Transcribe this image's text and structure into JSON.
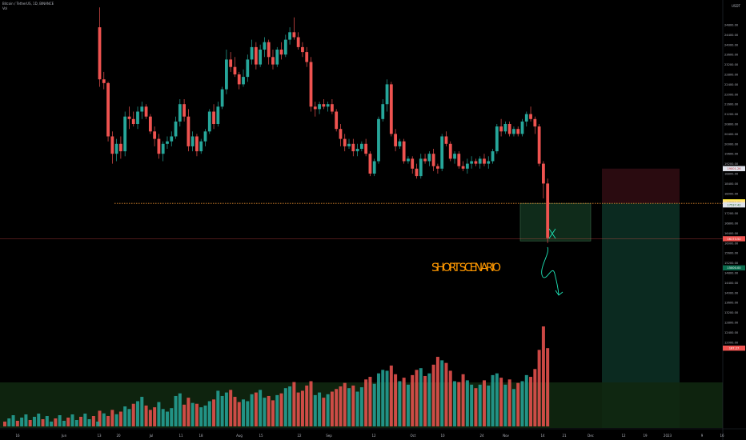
{
  "header": {
    "symbol_line": "Bitcoin / TetherUS, 1D, BINANCE",
    "vol_label": "Vol"
  },
  "axis": {
    "currency": "USDT",
    "price_labels": [
      "24800.00",
      "24400.00",
      "24000.00",
      "23600.00",
      "23200.00",
      "22800.00",
      "22400.00",
      "22000.00",
      "21600.00",
      "21200.00",
      "20800.00",
      "20400.00",
      "20000.00",
      "19600.00",
      "19200.00",
      "18800.00",
      "18400.00",
      "18000.00",
      "17600.00",
      "17200.00",
      "16800.00",
      "16400.00",
      "16000.00",
      "15600.00",
      "15200.00",
      "14800.00",
      "14400.00",
      "14000.00",
      "13600.00",
      "13200.00",
      "12800.00",
      "12400.00",
      "12000.00"
    ],
    "date_labels": [
      "16",
      "Jun",
      "13",
      "20",
      "Jul",
      "11",
      "18",
      "Aug",
      "15",
      "22",
      "Sep",
      "12",
      "Oct",
      "10",
      "24",
      "Nov",
      "14",
      "21",
      "Dec",
      "12",
      "19",
      "2023",
      "9",
      "16"
    ],
    "tags": {
      "stop": "19001.26",
      "zone_top": "17662.00",
      "zone_mid": "17622.00",
      "zone_bottom": "17537.42",
      "last": "16173.52",
      "target": "15000.00",
      "vol": "167.27"
    }
  },
  "annotation": {
    "text": "SHORT SCENARIO"
  },
  "colors": {
    "up": "#26a69a",
    "down": "#ef5350",
    "level_line": "#e08a2e",
    "annotation": "#ff9800",
    "scenario_arrow": "#1ee3b6",
    "stop_zone": "#2a0b10",
    "target_zone": "#0b2a20",
    "vol_zone": "#102710"
  },
  "chart_data": {
    "type": "candlestick",
    "symbol": "Bitcoin / TetherUS",
    "interval": "1D",
    "exchange": "BINANCE",
    "key_level": 17600,
    "last_price": 16173.52,
    "position": {
      "entry": 17600,
      "stop": 19001.26,
      "target": 15000.0
    },
    "ohlc": [
      [
        24700,
        25500,
        22300,
        22600
      ],
      [
        22600,
        22900,
        22200,
        22450
      ],
      [
        22450,
        22500,
        20100,
        20300
      ],
      [
        20300,
        20500,
        19200,
        19600
      ],
      [
        19600,
        20200,
        19300,
        20000
      ],
      [
        20000,
        20300,
        19400,
        19700
      ],
      [
        19700,
        21300,
        19500,
        21100
      ],
      [
        21100,
        21500,
        20600,
        21000
      ],
      [
        21000,
        21300,
        20700,
        20800
      ],
      [
        20800,
        21500,
        20600,
        21300
      ],
      [
        21300,
        21700,
        21000,
        21500
      ],
      [
        21500,
        21600,
        21000,
        21100
      ],
      [
        21100,
        21200,
        20400,
        20500
      ],
      [
        20500,
        20700,
        19900,
        20200
      ],
      [
        20200,
        20400,
        19400,
        19600
      ],
      [
        19600,
        20100,
        19300,
        20000
      ],
      [
        20000,
        20300,
        19800,
        20100
      ],
      [
        20100,
        20500,
        19900,
        20300
      ],
      [
        20300,
        21100,
        20200,
        20900
      ],
      [
        20900,
        21800,
        20700,
        21600
      ],
      [
        21600,
        21800,
        20900,
        21100
      ],
      [
        21100,
        21400,
        19700,
        19900
      ],
      [
        19900,
        20500,
        19700,
        20300
      ],
      [
        20300,
        20400,
        19500,
        19700
      ],
      [
        19700,
        20200,
        19600,
        20100
      ],
      [
        20100,
        20600,
        19900,
        20500
      ],
      [
        20500,
        21400,
        20400,
        21300
      ],
      [
        21300,
        21600,
        20600,
        20800
      ],
      [
        20800,
        21700,
        20700,
        21500
      ],
      [
        21500,
        22300,
        21400,
        22200
      ],
      [
        22200,
        23800,
        22000,
        23400
      ],
      [
        23400,
        23700,
        22900,
        23100
      ],
      [
        23100,
        23500,
        22700,
        22800
      ],
      [
        22800,
        22900,
        22200,
        22400
      ],
      [
        22400,
        23000,
        22300,
        22700
      ],
      [
        22700,
        23600,
        22500,
        23400
      ],
      [
        23400,
        24200,
        23200,
        23900
      ],
      [
        23900,
        24100,
        23000,
        23200
      ],
      [
        23200,
        24000,
        23100,
        23800
      ],
      [
        23800,
        24300,
        23500,
        24100
      ],
      [
        24100,
        24200,
        23200,
        23500
      ],
      [
        23500,
        23800,
        23000,
        23200
      ],
      [
        23200,
        23900,
        23100,
        23800
      ],
      [
        23800,
        24100,
        23400,
        23600
      ],
      [
        23600,
        24400,
        23500,
        24200
      ],
      [
        24200,
        24700,
        24000,
        24500
      ],
      [
        24500,
        25100,
        24200,
        24300
      ],
      [
        24300,
        24500,
        23800,
        23900
      ],
      [
        23900,
        24100,
        23500,
        23700
      ],
      [
        23700,
        23900,
        23100,
        23300
      ],
      [
        23300,
        23500,
        21300,
        21500
      ],
      [
        21500,
        21700,
        21100,
        21400
      ],
      [
        21400,
        21700,
        21200,
        21600
      ],
      [
        21600,
        21800,
        21400,
        21500
      ],
      [
        21500,
        21700,
        21300,
        21600
      ],
      [
        21600,
        21800,
        21200,
        21300
      ],
      [
        21300,
        21400,
        20500,
        20600
      ],
      [
        20600,
        20800,
        19900,
        20200
      ],
      [
        20200,
        20400,
        19700,
        19900
      ],
      [
        19900,
        20200,
        19800,
        20000
      ],
      [
        20000,
        20200,
        19500,
        19700
      ],
      [
        19700,
        20000,
        19500,
        19800
      ],
      [
        19800,
        20100,
        19700,
        20000
      ],
      [
        20000,
        20200,
        19500,
        19600
      ],
      [
        19600,
        19700,
        18700,
        18800
      ],
      [
        18800,
        19400,
        18700,
        19300
      ],
      [
        19300,
        21100,
        19200,
        21000
      ],
      [
        21000,
        21800,
        20900,
        21600
      ],
      [
        21600,
        22600,
        21300,
        22400
      ],
      [
        22400,
        22500,
        20300,
        20400
      ],
      [
        20400,
        20600,
        19700,
        19900
      ],
      [
        19900,
        20200,
        19800,
        20100
      ],
      [
        20100,
        20200,
        19200,
        19300
      ],
      [
        19300,
        19500,
        19200,
        19400
      ],
      [
        19400,
        19500,
        18800,
        19000
      ],
      [
        19000,
        19200,
        18600,
        18700
      ],
      [
        18700,
        19600,
        18600,
        19400
      ],
      [
        19400,
        19600,
        19200,
        19300
      ],
      [
        19300,
        19700,
        19100,
        19600
      ],
      [
        19600,
        19800,
        18900,
        19100
      ],
      [
        19100,
        19200,
        18800,
        19000
      ],
      [
        19000,
        20400,
        18900,
        20300
      ],
      [
        20300,
        20500,
        19900,
        20000
      ],
      [
        20000,
        20100,
        19300,
        19400
      ],
      [
        19400,
        19700,
        19200,
        19600
      ],
      [
        19600,
        19700,
        19000,
        19100
      ],
      [
        19100,
        19300,
        18900,
        19000
      ],
      [
        19000,
        19400,
        18800,
        19200
      ],
      [
        19200,
        19500,
        19000,
        19300
      ],
      [
        19300,
        19400,
        19100,
        19200
      ],
      [
        19200,
        19500,
        19000,
        19400
      ],
      [
        19400,
        19600,
        19100,
        19200
      ],
      [
        19200,
        19500,
        19000,
        19300
      ],
      [
        19300,
        19800,
        19200,
        19700
      ],
      [
        19700,
        20800,
        19600,
        20700
      ],
      [
        20700,
        21000,
        20300,
        20500
      ],
      [
        20500,
        20900,
        20400,
        20800
      ],
      [
        20800,
        20900,
        20300,
        20400
      ],
      [
        20400,
        20700,
        20300,
        20600
      ],
      [
        20600,
        20700,
        20300,
        20400
      ],
      [
        20400,
        21000,
        20300,
        20900
      ],
      [
        20900,
        21300,
        20700,
        21200
      ],
      [
        21200,
        21500,
        20900,
        21000
      ],
      [
        21000,
        21100,
        20400,
        20700
      ],
      [
        20700,
        20800,
        19100,
        19200
      ],
      [
        19200,
        19300,
        17800,
        18400
      ],
      [
        18400,
        18600,
        16000,
        16200
      ]
    ],
    "volume": [
      [
        1800,
        0
      ],
      [
        1500,
        1
      ],
      [
        1200,
        0
      ],
      [
        1900,
        0
      ],
      [
        1400,
        1
      ],
      [
        1700,
        0
      ],
      [
        2300,
        1
      ],
      [
        2000,
        1
      ],
      [
        2600,
        0
      ],
      [
        2900,
        1
      ],
      [
        3400,
        1
      ],
      [
        2400,
        0
      ],
      [
        1900,
        0
      ],
      [
        2200,
        0
      ],
      [
        2800,
        1
      ],
      [
        2000,
        1
      ],
      [
        1700,
        1
      ],
      [
        2100,
        1
      ],
      [
        3500,
        1
      ],
      [
        3800,
        1
      ],
      [
        2500,
        0
      ],
      [
        3300,
        0
      ],
      [
        2700,
        1
      ],
      [
        2600,
        0
      ],
      [
        2200,
        1
      ],
      [
        2400,
        1
      ],
      [
        2900,
        1
      ],
      [
        3100,
        0
      ],
      [
        4100,
        1
      ],
      [
        3500,
        1
      ],
      [
        3900,
        1
      ],
      [
        4200,
        0
      ],
      [
        3400,
        0
      ],
      [
        2800,
        0
      ],
      [
        3100,
        1
      ],
      [
        2900,
        1
      ],
      [
        3700,
        1
      ],
      [
        3900,
        0
      ],
      [
        4200,
        1
      ],
      [
        3300,
        1
      ],
      [
        3500,
        0
      ],
      [
        3000,
        0
      ],
      [
        3600,
        1
      ],
      [
        3800,
        0
      ],
      [
        4400,
        1
      ],
      [
        4600,
        1
      ],
      [
        5100,
        0
      ],
      [
        3900,
        0
      ],
      [
        4100,
        0
      ],
      [
        4700,
        0
      ],
      [
        5200,
        0
      ],
      [
        3600,
        1
      ],
      [
        3900,
        1
      ],
      [
        3300,
        0
      ],
      [
        3700,
        1
      ],
      [
        4000,
        0
      ],
      [
        4300,
        0
      ],
      [
        4600,
        0
      ],
      [
        5000,
        0
      ],
      [
        4400,
        1
      ],
      [
        4700,
        0
      ],
      [
        4000,
        1
      ],
      [
        4500,
        1
      ],
      [
        5400,
        0
      ],
      [
        5700,
        0
      ],
      [
        4900,
        1
      ],
      [
        6100,
        1
      ],
      [
        6500,
        1
      ],
      [
        6400,
        1
      ],
      [
        7000,
        0
      ],
      [
        6000,
        0
      ],
      [
        5200,
        1
      ],
      [
        5600,
        0
      ],
      [
        4800,
        1
      ],
      [
        5900,
        0
      ],
      [
        6500,
        0
      ],
      [
        6700,
        1
      ],
      [
        5800,
        0
      ],
      [
        6100,
        1
      ],
      [
        7100,
        0
      ],
      [
        8000,
        0
      ],
      [
        7600,
        1
      ],
      [
        7300,
        0
      ],
      [
        6400,
        0
      ],
      [
        5200,
        1
      ],
      [
        5100,
        0
      ],
      [
        6000,
        0
      ],
      [
        5300,
        1
      ],
      [
        4800,
        1
      ],
      [
        4400,
        0
      ],
      [
        4800,
        1
      ],
      [
        5300,
        0
      ],
      [
        4700,
        1
      ],
      [
        5900,
        1
      ],
      [
        6100,
        1
      ],
      [
        5600,
        0
      ],
      [
        4800,
        1
      ],
      [
        5400,
        0
      ],
      [
        4300,
        1
      ],
      [
        5000,
        0
      ],
      [
        5200,
        1
      ],
      [
        5900,
        1
      ],
      [
        5700,
        0
      ],
      [
        6600,
        0
      ],
      [
        8800,
        0
      ],
      [
        11500,
        0
      ],
      [
        9000,
        0
      ]
    ]
  }
}
